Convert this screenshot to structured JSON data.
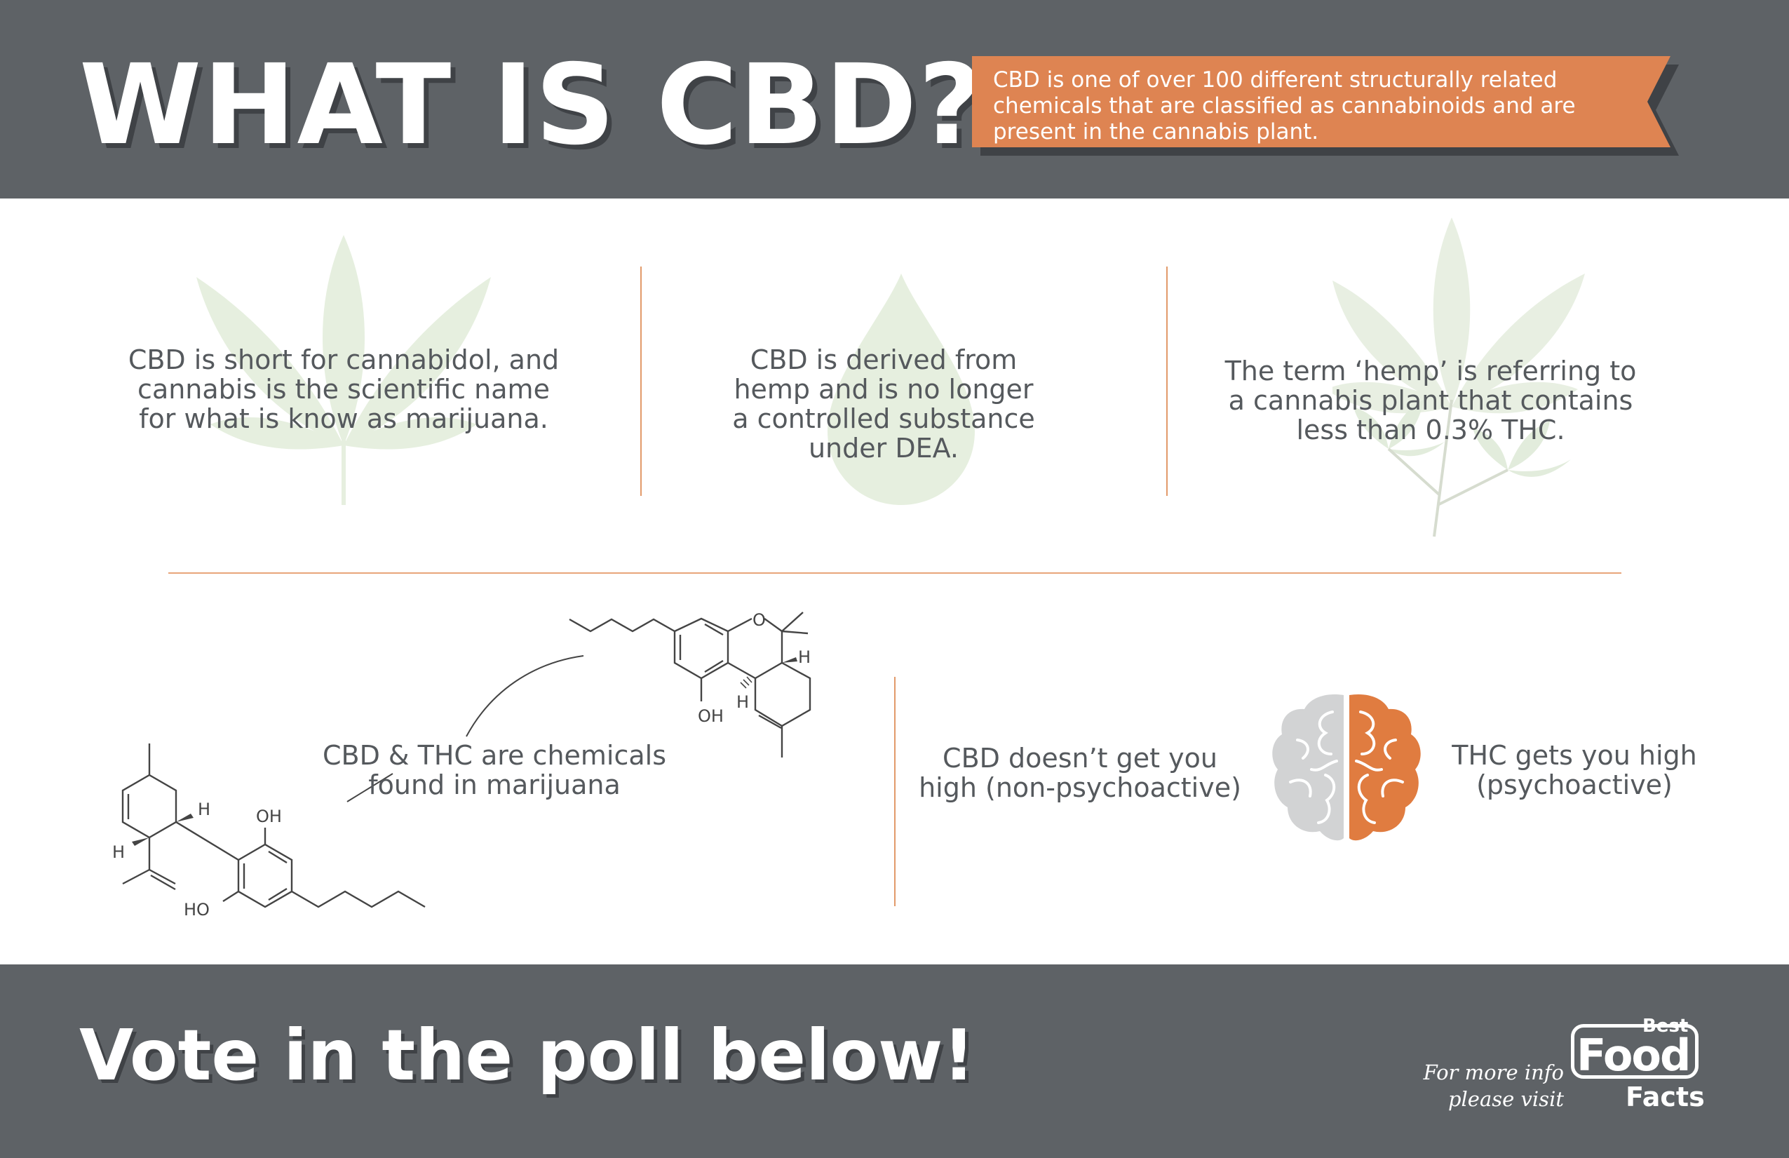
{
  "header": {
    "title": "WHAT IS CBD?",
    "banner_text": "CBD is one of over 100 different structurally related chemicals that are classified as cannabinoids and are present in the cannabis plant."
  },
  "facts": [
    "CBD is short for cannabidol, and cannabis is the scientific name for what is know as marijuana.",
    "CBD is derived from hemp and is no longer a controlled substance under DEA.",
    "The term ‘hemp’ is referring to a cannabis plant that contains less than 0.3% THC."
  ],
  "chemicals": {
    "caption": "CBD & THC are chemicals found in marijuana",
    "labels": {
      "o": "O",
      "h": "H",
      "oh": "OH",
      "ho": "HO"
    }
  },
  "psychoactive": {
    "cbd_text": "CBD doesn’t get you high (non-psychoactive)",
    "thc_text": "THC gets you high (psychoactive)"
  },
  "footer": {
    "vote": "Vote in the poll below!",
    "more_info": "For more info please visit",
    "logo_best": "Best",
    "logo_food": "Food",
    "logo_facts": "Facts"
  },
  "colors": {
    "header_bg": "#5e6266",
    "accent_orange": "#de8452",
    "leaf_green": "#e6efdf",
    "brain_gray": "#d2d3d4",
    "brain_orange": "#e07c40"
  }
}
